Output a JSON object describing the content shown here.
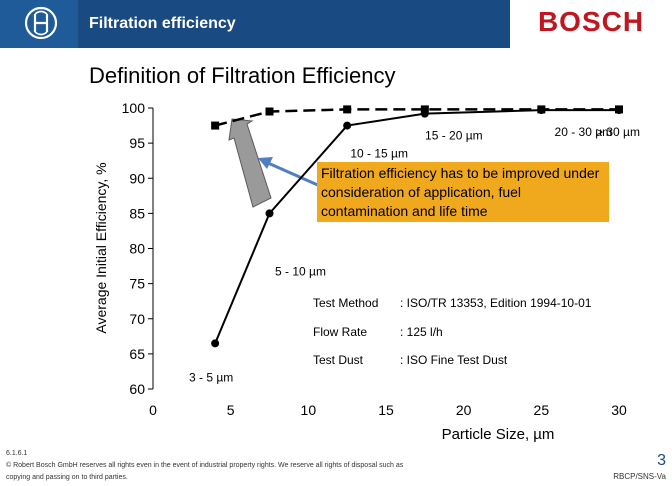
{
  "header": {
    "title": "Filtration efficiency",
    "brand": "BOSCH"
  },
  "slide": {
    "title": "Definition of Filtration Efficiency"
  },
  "chart_data": {
    "type": "line",
    "xlabel": "Particle Size, µm",
    "ylabel": "Average Initial Efficiency, %",
    "xlim": [
      0,
      30
    ],
    "ylim": [
      60,
      100
    ],
    "xticks": [
      0,
      5,
      10,
      15,
      20,
      25,
      30
    ],
    "yticks": [
      60,
      65,
      70,
      75,
      80,
      85,
      90,
      95,
      100
    ],
    "grid": false,
    "series": [
      {
        "style": "solid",
        "x": [
          4,
          7.5,
          12.5,
          17.5,
          25,
          30
        ],
        "y": [
          66.5,
          85,
          97.5,
          99.2,
          99.7,
          99.7
        ]
      },
      {
        "style": "dashed",
        "x": [
          4,
          7.5,
          12.5,
          17.5,
          25,
          30
        ],
        "y": [
          97.5,
          99.5,
          99.8,
          99.8,
          99.8,
          99.8
        ]
      }
    ],
    "point_labels": [
      "3 - 5 µm",
      "5 - 10 µm",
      "10 - 15 µm",
      "15 - 20 µm",
      "20 - 30 µm",
      "> 30 µm"
    ],
    "annotation": "Filtration efficiency has to be improved under consideration of application, fuel contamination and life time"
  },
  "test_params": [
    {
      "label": "Test Method",
      "value": ": ISO/TR 13353, Edition 1994-10-01"
    },
    {
      "label": "Flow Rate",
      "value": ": 125 l/h"
    },
    {
      "label": "Test Dust",
      "value": ": ISO Fine Test Dust"
    }
  ],
  "footer": {
    "code": "6.1.6.1",
    "copyright_line1": "© Robert Bosch GmbH reserves all rights even in the event of industrial property rights. We reserve all rights of disposal such as",
    "copyright_line2": "copying and passing on to third parties.",
    "page_number": "3",
    "page_code": "RBCP/SNS-Va"
  },
  "colors": {
    "header_bg": "#1a4a82",
    "brand_red": "#c0161f",
    "callout_bg": "#f0a81c",
    "arrow_gray": "#9a9a9a",
    "arrow_blue": "#4f7fc0"
  }
}
